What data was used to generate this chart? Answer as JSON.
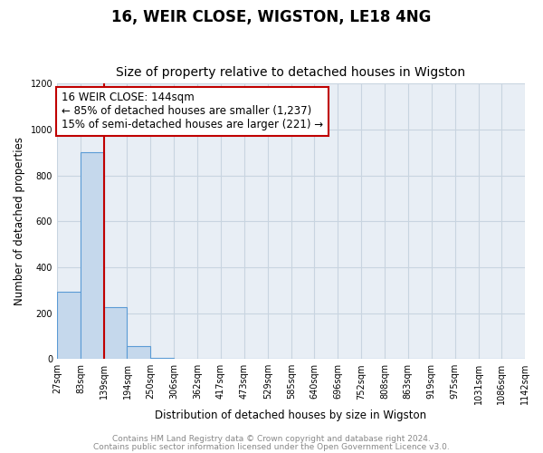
{
  "title": "16, WEIR CLOSE, WIGSTON, LE18 4NG",
  "subtitle": "Size of property relative to detached houses in Wigston",
  "xlabel": "Distribution of detached houses by size in Wigston",
  "ylabel": "Number of detached properties",
  "bar_edges": [
    27,
    83,
    139,
    194,
    250,
    306,
    362,
    417,
    473,
    529,
    585,
    640,
    696,
    752,
    808,
    863,
    919,
    975,
    1031,
    1086,
    1142
  ],
  "bar_heights": [
    295,
    900,
    225,
    55,
    5,
    0,
    0,
    0,
    0,
    0,
    0,
    0,
    0,
    0,
    0,
    0,
    0,
    0,
    0,
    0
  ],
  "tick_labels": [
    "27sqm",
    "83sqm",
    "139sqm",
    "194sqm",
    "250sqm",
    "306sqm",
    "362sqm",
    "417sqm",
    "473sqm",
    "529sqm",
    "585sqm",
    "640sqm",
    "696sqm",
    "752sqm",
    "808sqm",
    "863sqm",
    "919sqm",
    "975sqm",
    "1031sqm",
    "1086sqm",
    "1142sqm"
  ],
  "bar_color": "#c5d8ec",
  "bar_edge_color": "#5b9bd5",
  "grid_color": "#c8d4e0",
  "background_color": "#e8eef5",
  "vline_x": 139,
  "vline_color": "#c00000",
  "annotation_line1": "16 WEIR CLOSE: 144sqm",
  "annotation_line2": "← 85% of detached houses are smaller (1,237)",
  "annotation_line3": "15% of semi-detached houses are larger (221) →",
  "ylim": [
    0,
    1200
  ],
  "yticks": [
    0,
    200,
    400,
    600,
    800,
    1000,
    1200
  ],
  "footer_line1": "Contains HM Land Registry data © Crown copyright and database right 2024.",
  "footer_line2": "Contains public sector information licensed under the Open Government Licence v3.0.",
  "title_fontsize": 12,
  "subtitle_fontsize": 10,
  "axis_label_fontsize": 8.5,
  "tick_fontsize": 7,
  "annotation_fontsize": 8.5,
  "footer_fontsize": 6.5
}
